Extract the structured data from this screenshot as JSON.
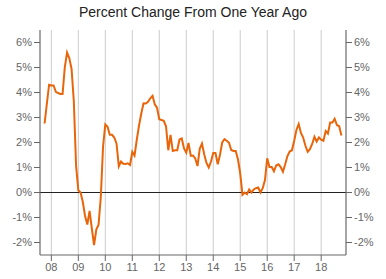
{
  "chart_data": {
    "type": "line",
    "title": "Percent Change From One Year Ago",
    "color": "#E8650A",
    "grid": "x",
    "xlim": [
      2007.58,
      2018.92
    ],
    "xticks": [
      {
        "value": 2008,
        "label": "08"
      },
      {
        "value": 2009,
        "label": "09"
      },
      {
        "value": 2010,
        "label": "10"
      },
      {
        "value": 2011,
        "label": "11"
      },
      {
        "value": 2012,
        "label": "12"
      },
      {
        "value": 2013,
        "label": "13"
      },
      {
        "value": 2014,
        "label": "14"
      },
      {
        "value": 2015,
        "label": "15"
      },
      {
        "value": 2016,
        "label": "16"
      },
      {
        "value": 2017,
        "label": "17"
      },
      {
        "value": 2018,
        "label": "18"
      }
    ],
    "ylim": [
      -2.5,
      6.5
    ],
    "yticks": [
      {
        "value": -2,
        "label": "-2%"
      },
      {
        "value": -1,
        "label": "-1%"
      },
      {
        "value": 0,
        "label": "0%"
      },
      {
        "value": 1,
        "label": "1%"
      },
      {
        "value": 2,
        "label": "2%"
      },
      {
        "value": 3,
        "label": "3%"
      },
      {
        "value": 4,
        "label": "4%"
      },
      {
        "value": 5,
        "label": "5%"
      },
      {
        "value": 6,
        "label": "6%"
      }
    ],
    "y2lim": [
      -2.5,
      6.5
    ],
    "y2ticks": [
      {
        "value": -2,
        "label": "-2%"
      },
      {
        "value": -1,
        "label": "-1%"
      },
      {
        "value": 0,
        "label": "0%"
      },
      {
        "value": 1,
        "label": "1%"
      },
      {
        "value": 2,
        "label": "2%"
      },
      {
        "value": 3,
        "label": "3%"
      },
      {
        "value": 4,
        "label": "4%"
      },
      {
        "value": 5,
        "label": "5%"
      },
      {
        "value": 6,
        "label": "6%"
      }
    ],
    "x": [
      2007.75,
      2007.833,
      2007.917,
      2008.0,
      2008.083,
      2008.167,
      2008.25,
      2008.333,
      2008.417,
      2008.5,
      2008.583,
      2008.667,
      2008.75,
      2008.833,
      2008.917,
      2009.0,
      2009.083,
      2009.167,
      2009.25,
      2009.333,
      2009.417,
      2009.5,
      2009.583,
      2009.667,
      2009.75,
      2009.833,
      2009.917,
      2010.0,
      2010.083,
      2010.167,
      2010.25,
      2010.333,
      2010.417,
      2010.5,
      2010.583,
      2010.667,
      2010.75,
      2010.833,
      2010.917,
      2011.0,
      2011.083,
      2011.167,
      2011.25,
      2011.333,
      2011.417,
      2011.5,
      2011.583,
      2011.667,
      2011.75,
      2011.833,
      2011.917,
      2012.0,
      2012.083,
      2012.167,
      2012.25,
      2012.333,
      2012.417,
      2012.5,
      2012.583,
      2012.667,
      2012.75,
      2012.833,
      2012.917,
      2013.0,
      2013.083,
      2013.167,
      2013.25,
      2013.333,
      2013.417,
      2013.5,
      2013.583,
      2013.667,
      2013.75,
      2013.833,
      2013.917,
      2014.0,
      2014.083,
      2014.167,
      2014.25,
      2014.333,
      2014.417,
      2014.5,
      2014.583,
      2014.667,
      2014.75,
      2014.833,
      2014.917,
      2015.0,
      2015.083,
      2015.167,
      2015.25,
      2015.333,
      2015.417,
      2015.5,
      2015.583,
      2015.667,
      2015.75,
      2015.833,
      2015.917,
      2016.0,
      2016.083,
      2016.167,
      2016.25,
      2016.333,
      2016.417,
      2016.5,
      2016.583,
      2016.667,
      2016.75,
      2016.833,
      2016.917,
      2017.0,
      2017.083,
      2017.167,
      2017.25,
      2017.333,
      2017.417,
      2017.5,
      2017.583,
      2017.667,
      2017.75,
      2017.833,
      2017.917,
      2018.0,
      2018.083,
      2018.167,
      2018.25,
      2018.333,
      2018.417,
      2018.5,
      2018.583,
      2018.667,
      2018.75
    ],
    "values": [
      2.76,
      3.54,
      4.31,
      4.28,
      4.28,
      4.03,
      3.98,
      3.94,
      3.94,
      5.02,
      5.6,
      5.37,
      4.94,
      3.66,
      1.07,
      0.09,
      0.0,
      -0.38,
      -0.94,
      -1.28,
      -0.74,
      -1.43,
      -2.1,
      -1.48,
      -1.29,
      -0.18,
      1.84,
      2.72,
      2.63,
      2.31,
      2.31,
      2.2,
      1.95,
      1.05,
      1.24,
      1.15,
      1.14,
      1.17,
      1.1,
      1.63,
      1.48,
      2.11,
      2.68,
      3.16,
      3.57,
      3.56,
      3.63,
      3.77,
      3.87,
      3.53,
      3.39,
      2.93,
      2.9,
      2.87,
      2.65,
      1.69,
      2.3,
      1.66,
      1.69,
      1.69,
      2.12,
      2.16,
      1.76,
      1.59,
      1.98,
      1.47,
      1.48,
      1.36,
      1.06,
      1.75,
      1.96,
      1.52,
      1.18,
      1.0,
      1.24,
      1.58,
      1.58,
      1.13,
      1.51,
      2.0,
      2.13,
      2.07,
      1.99,
      1.7,
      1.66,
      1.66,
      1.32,
      0.76,
      -0.09,
      0.0,
      -0.07,
      0.12,
      0.0,
      0.12,
      0.17,
      0.2,
      0.0,
      0.17,
      0.5,
      1.37,
      1.02,
      1.02,
      0.85,
      1.08,
      1.13,
      1.02,
      0.83,
      1.13,
      1.46,
      1.64,
      1.69,
      2.07,
      2.5,
      2.74,
      2.38,
      2.2,
      1.87,
      1.63,
      1.73,
      1.94,
      2.23,
      2.04,
      2.2,
      2.11,
      2.07,
      2.46,
      2.36,
      2.8,
      2.8,
      2.95,
      2.7,
      2.65,
      2.28
    ]
  }
}
